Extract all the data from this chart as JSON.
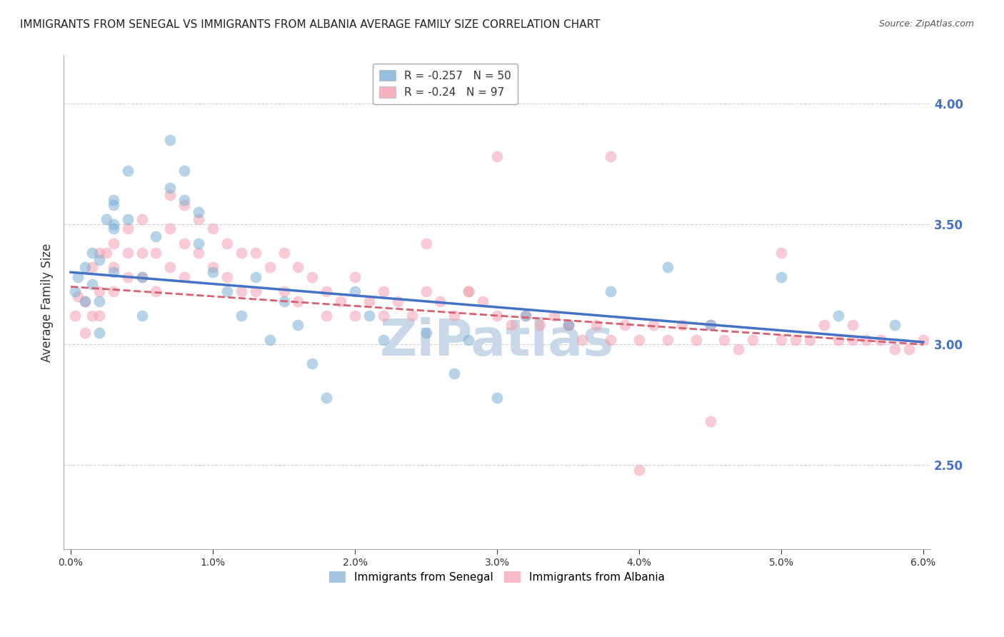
{
  "title": "IMMIGRANTS FROM SENEGAL VS IMMIGRANTS FROM ALBANIA AVERAGE FAMILY SIZE CORRELATION CHART",
  "source": "Source: ZipAtlas.com",
  "ylabel": "Average Family Size",
  "right_yticks": [
    2.5,
    3.0,
    3.5,
    4.0
  ],
  "xmin": 0.0,
  "xmax": 0.06,
  "ymin": 2.15,
  "ymax": 4.2,
  "watermark": "ZiPatlas",
  "senegal": {
    "label": "Immigrants from Senegal",
    "R": -0.257,
    "N": 50,
    "color": "#7bafd4",
    "x": [
      0.0003,
      0.0005,
      0.001,
      0.001,
      0.0015,
      0.0015,
      0.002,
      0.002,
      0.002,
      0.0025,
      0.003,
      0.003,
      0.003,
      0.003,
      0.004,
      0.004,
      0.005,
      0.005,
      0.006,
      0.007,
      0.007,
      0.008,
      0.008,
      0.009,
      0.009,
      0.01,
      0.011,
      0.012,
      0.013,
      0.014,
      0.015,
      0.016,
      0.017,
      0.018,
      0.02,
      0.021,
      0.022,
      0.025,
      0.027,
      0.028,
      0.03,
      0.032,
      0.035,
      0.038,
      0.042,
      0.045,
      0.05,
      0.054,
      0.058,
      0.003
    ],
    "y": [
      3.22,
      3.28,
      3.32,
      3.18,
      3.38,
      3.25,
      3.35,
      3.18,
      3.05,
      3.52,
      3.48,
      3.58,
      3.5,
      3.3,
      3.72,
      3.52,
      3.28,
      3.12,
      3.45,
      3.85,
      3.65,
      3.72,
      3.6,
      3.55,
      3.42,
      3.3,
      3.22,
      3.12,
      3.28,
      3.02,
      3.18,
      3.08,
      2.92,
      2.78,
      3.22,
      3.12,
      3.02,
      3.05,
      2.88,
      3.02,
      2.78,
      3.12,
      3.08,
      3.22,
      3.32,
      3.08,
      3.28,
      3.12,
      3.08,
      3.6
    ],
    "trendline_x": [
      0.0,
      0.06
    ],
    "trendline_y": [
      3.3,
      3.01
    ]
  },
  "albania": {
    "label": "Immigrants from Albania",
    "R": -0.24,
    "N": 97,
    "color": "#f4a0b0",
    "x": [
      0.0003,
      0.0005,
      0.001,
      0.001,
      0.0015,
      0.0015,
      0.002,
      0.002,
      0.002,
      0.0025,
      0.003,
      0.003,
      0.003,
      0.004,
      0.004,
      0.004,
      0.005,
      0.005,
      0.005,
      0.006,
      0.006,
      0.007,
      0.007,
      0.007,
      0.008,
      0.008,
      0.008,
      0.009,
      0.009,
      0.01,
      0.01,
      0.011,
      0.011,
      0.012,
      0.012,
      0.013,
      0.013,
      0.014,
      0.015,
      0.015,
      0.016,
      0.016,
      0.017,
      0.018,
      0.018,
      0.019,
      0.02,
      0.02,
      0.021,
      0.022,
      0.022,
      0.023,
      0.024,
      0.025,
      0.026,
      0.027,
      0.028,
      0.029,
      0.03,
      0.031,
      0.032,
      0.033,
      0.034,
      0.035,
      0.036,
      0.037,
      0.038,
      0.039,
      0.04,
      0.041,
      0.042,
      0.043,
      0.044,
      0.045,
      0.046,
      0.047,
      0.048,
      0.05,
      0.051,
      0.052,
      0.053,
      0.054,
      0.055,
      0.056,
      0.057,
      0.058,
      0.059,
      0.06,
      0.025,
      0.03,
      0.04,
      0.045,
      0.05,
      0.055,
      0.035,
      0.028,
      0.038
    ],
    "y": [
      3.12,
      3.2,
      3.18,
      3.05,
      3.32,
      3.12,
      3.38,
      3.22,
      3.12,
      3.38,
      3.42,
      3.32,
      3.22,
      3.48,
      3.38,
      3.28,
      3.52,
      3.38,
      3.28,
      3.38,
      3.22,
      3.62,
      3.48,
      3.32,
      3.58,
      3.42,
      3.28,
      3.52,
      3.38,
      3.48,
      3.32,
      3.42,
      3.28,
      3.38,
      3.22,
      3.38,
      3.22,
      3.32,
      3.38,
      3.22,
      3.32,
      3.18,
      3.28,
      3.22,
      3.12,
      3.18,
      3.28,
      3.12,
      3.18,
      3.22,
      3.12,
      3.18,
      3.12,
      3.22,
      3.18,
      3.12,
      3.22,
      3.18,
      3.12,
      3.08,
      3.12,
      3.08,
      3.12,
      3.08,
      3.02,
      3.08,
      3.02,
      3.08,
      3.02,
      3.08,
      3.02,
      3.08,
      3.02,
      3.08,
      3.02,
      2.98,
      3.02,
      3.02,
      3.02,
      3.02,
      3.08,
      3.02,
      3.02,
      3.02,
      3.02,
      2.98,
      2.98,
      3.02,
      3.42,
      3.78,
      2.48,
      2.68,
      3.38,
      3.08,
      3.08,
      3.22,
      3.78
    ],
    "trendline_x": [
      0.0,
      0.06
    ],
    "trendline_y": [
      3.24,
      3.0
    ]
  },
  "grid_color": "#cccccc",
  "title_fontsize": 11,
  "source_fontsize": 9,
  "right_axis_color": "#4472c4",
  "watermark_color": "#c8d8e8",
  "watermark_fontsize": 52
}
